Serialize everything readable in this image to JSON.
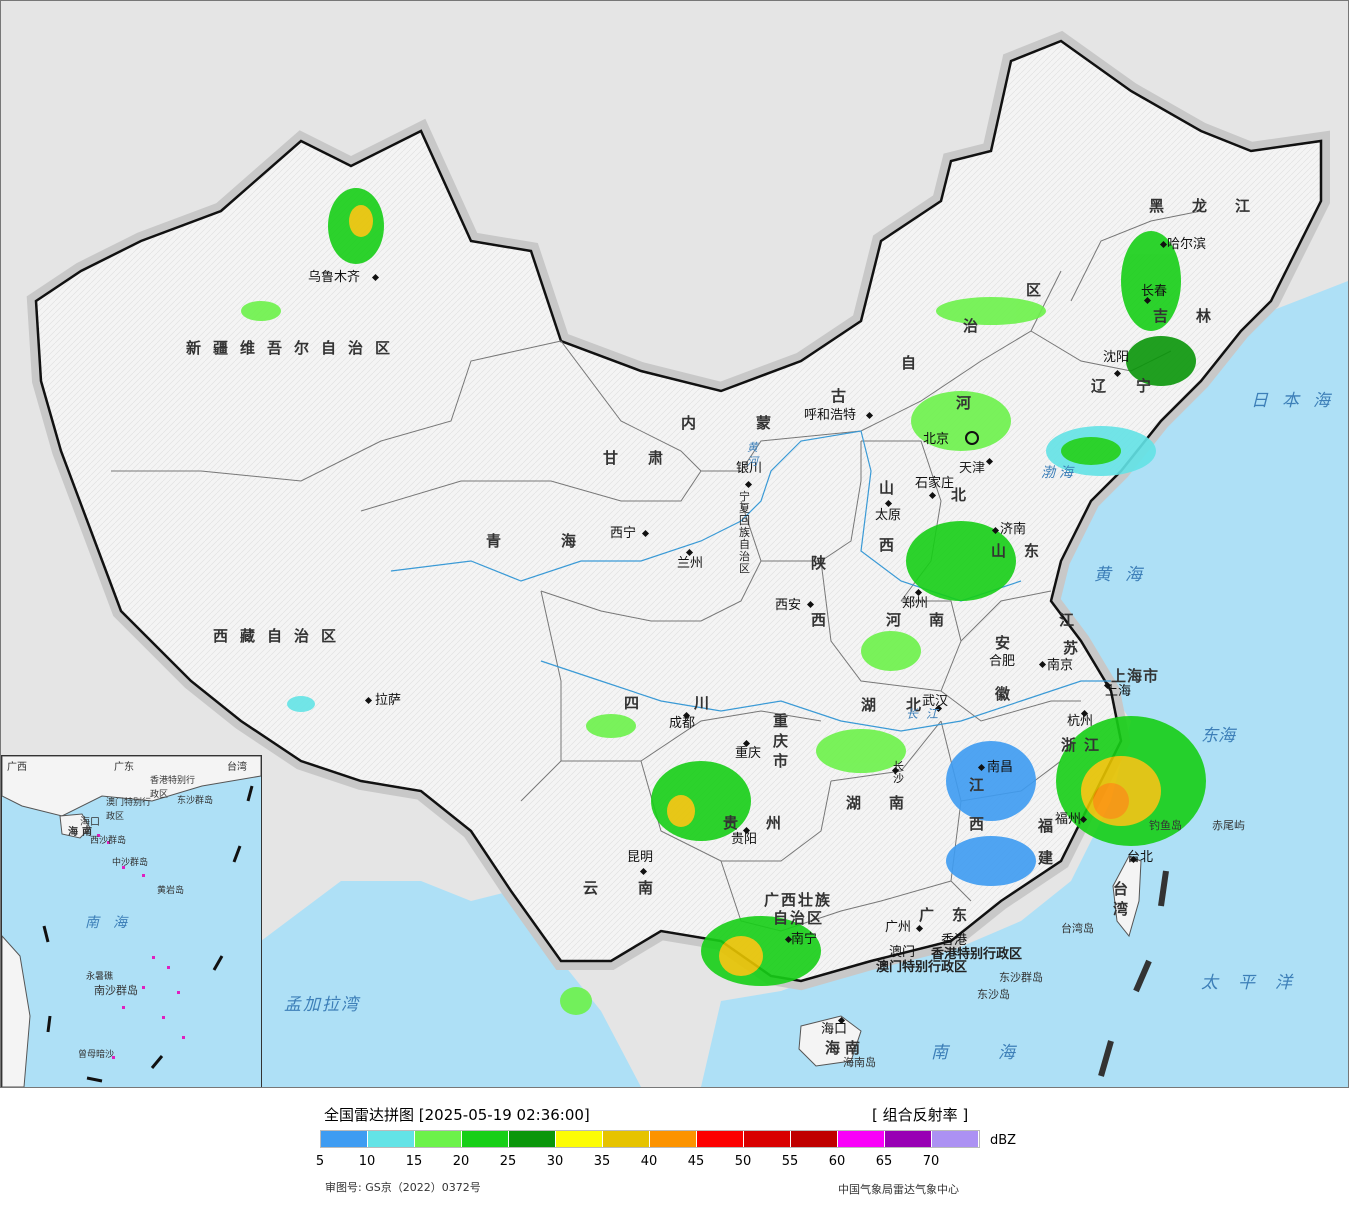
{
  "legend": {
    "title": "全国雷达拼图 [2025-05-19 02:36:00]",
    "product": "[ 组合反射率 ]",
    "unit": "dBZ",
    "colors": [
      "#3e9cf2",
      "#63e3e6",
      "#6cf24a",
      "#17cf17",
      "#0a960a",
      "#fcfc05",
      "#e6c300",
      "#fc9300",
      "#fc0000",
      "#d90000",
      "#c00000",
      "#f900f9",
      "#9800b4",
      "#ac91f3"
    ],
    "ticks": [
      "5",
      "10",
      "15",
      "20",
      "25",
      "30",
      "35",
      "40",
      "45",
      "50",
      "55",
      "60",
      "65",
      "70"
    ],
    "approval": "审图号: GS京（2022）0372号",
    "center": "中国气象局雷达气象中心"
  },
  "provinces": {
    "xinjiang": "新疆维吾尔自治区",
    "tibet": "西藏自治区",
    "qinghai": "青海",
    "gansu": "甘肃",
    "sichuan": "四川",
    "yunnan": "云南",
    "neimenggu_1": "内蒙",
    "neimenggu_2": "古",
    "neimenggu_3": "自",
    "neimenggu_4": "治",
    "neimenggu_5": "区",
    "heilongjiang": "黑龙江",
    "jilin": "吉林",
    "liaoning": "辽宁",
    "hebei_1": "河",
    "hebei_2": "北",
    "shanxi_1": "山",
    "shanxi_2": "西",
    "shaanxi_1": "陕",
    "shaanxi_2": "西",
    "ningxia": "宁夏回族自治区",
    "shandong": "山东",
    "henan": "河南",
    "jiangsu_1": "江",
    "jiangsu_2": "苏",
    "anhui_1": "安",
    "anhui_2": "徽",
    "shanghai": "上海市",
    "zhejiang": "浙江",
    "hubei": "湖北",
    "chongqing": "重庆市",
    "hunan": "湖南",
    "jiangxi_1": "江",
    "jiangxi_2": "西",
    "fujian_1": "福",
    "fujian_2": "建",
    "guizhou": "贵州",
    "guangxi_1": "广西壮族",
    "guangxi_2": "自治区",
    "guangdong": "广东",
    "hainan_1": "海",
    "hainan_2": "南",
    "taiwan": "台湾",
    "hongkong": "香港特别行政区",
    "macau": "澳门特别行政区",
    "tianjin": "天津"
  },
  "cities": {
    "urumqi": "乌鲁木齐",
    "lhasa": "拉萨",
    "xining": "西宁",
    "lanzhou": "兰州",
    "yinchuan": "银川",
    "hohhot": "呼和浩特",
    "beijing": "北京",
    "tianjin": "天津",
    "shijiazhuang": "石家庄",
    "taiyuan": "太原",
    "jinan": "济南",
    "xian": "西安",
    "zhengzhou": "郑州",
    "hefei": "合肥",
    "nanjing": "南京",
    "shanghai": "上海",
    "hangzhou": "杭州",
    "wuhan": "武汉",
    "chengdu": "成都",
    "chongqing": "重庆",
    "changsha": "长沙",
    "nanchang": "南昌",
    "fuzhou": "福州",
    "guiyang": "贵阳",
    "kunming": "昆明",
    "nanning": "南宁",
    "guangzhou": "广州",
    "hongkong": "香港",
    "macau": "澳门",
    "haikou": "海口",
    "taipei": "台北",
    "shenyang": "沈阳",
    "changchun": "长春",
    "harbin": "哈尔滨"
  },
  "seas": {
    "japan_sea": "日本海",
    "bohai": "渤海",
    "yellow_sea": "黄海",
    "east_sea": "东海",
    "pacific": "太平洋",
    "south_sea": "南海",
    "bengal": "孟加拉湾",
    "yellow_river": "黄河",
    "yangtze": "长江"
  },
  "islands": {
    "diaoyu": "钓鱼岛",
    "chiwei": "赤尾屿",
    "dongsha_1": "东沙群岛",
    "dongsha_2": "东沙岛",
    "taiwan_isl": "台湾岛",
    "hainan_isl": "海南岛"
  },
  "inset": {
    "nanhai": "南海",
    "xisha": "西沙群岛",
    "zhongsha": "中沙群岛",
    "huangyan": "黄岩岛",
    "nansha": "南沙群岛",
    "yongshu": "永暑礁",
    "zengmu": "曾母暗沙",
    "haikou": "海口",
    "hongkong": "香港特别行政区",
    "macau": "澳门特别行政区",
    "taiwan": "台湾",
    "guangdong": "广东",
    "guangxi": "广西",
    "dongsha": "东沙群岛",
    "hainan_1": "海",
    "hainan_2": "南"
  }
}
